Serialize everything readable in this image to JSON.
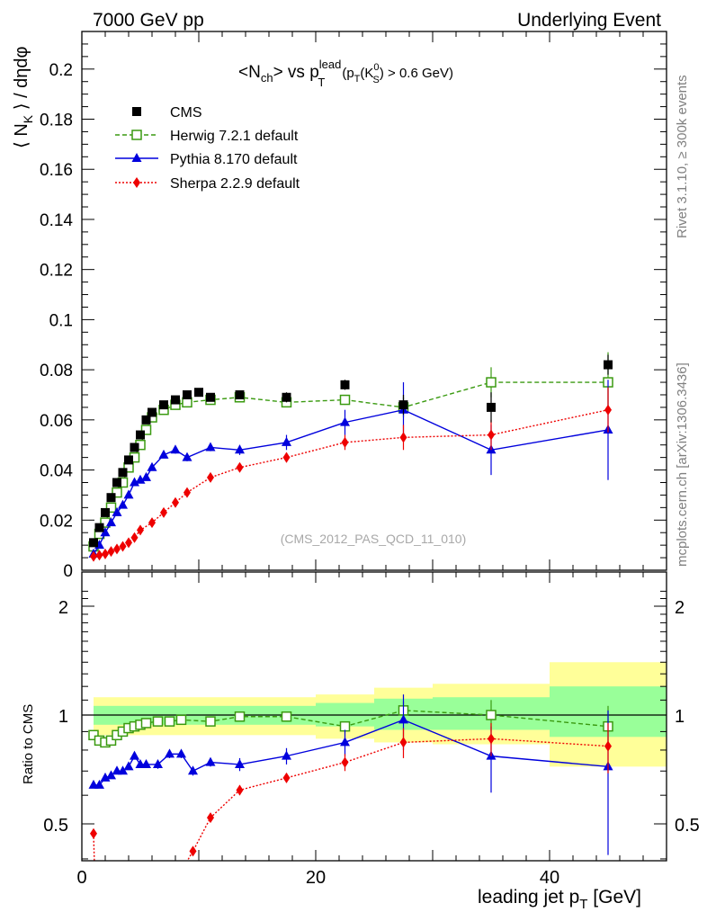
{
  "header": {
    "left": "7000 GeV pp",
    "right": "Underlying Event"
  },
  "side_labels": {
    "rivet": "Rivet 3.1.10, ≥ 300k events",
    "mcplots": "mcplots.cern.ch [arXiv:1306.3436]"
  },
  "chart_data": [
    {
      "type": "scatter",
      "title": {
        "main": "<N",
        "main_sub": "ch",
        "vs": "> vs p",
        "p_sup": "lead",
        "p_sub": "T",
        "cut_open": "(p",
        "cut_sub1": "T",
        "cut_paren": "(K",
        "k_sup": "0",
        "k_sub": "S",
        "cut_close": ") > 0.6 GeV)"
      },
      "ylabel": {
        "open": "⟨ N",
        "sub": "K",
        "close": " ⟩ / dηdφ"
      },
      "watermark": "(CMS_2012_PAS_QCD_11_010)",
      "xlim": [
        0,
        50
      ],
      "ylim": [
        0,
        0.215
      ],
      "ytick_labels": [
        "0",
        "0.02",
        "0.04",
        "0.06",
        "0.08",
        "0.1",
        "0.12",
        "0.14",
        "0.16",
        "0.18",
        "0.2"
      ],
      "legend_position": "top-left",
      "series": [
        {
          "name": "CMS",
          "color": "#000000",
          "marker": "filled-square",
          "x": [
            1.0,
            1.5,
            2.0,
            2.5,
            3.0,
            3.5,
            4.0,
            4.5,
            5.0,
            5.5,
            6.0,
            7.0,
            8.0,
            9.0,
            10.0,
            11.0,
            13.5,
            17.5,
            22.5,
            27.5,
            35.0,
            45.0
          ],
          "y": [
            0.011,
            0.017,
            0.023,
            0.029,
            0.035,
            0.039,
            0.044,
            0.049,
            0.054,
            0.06,
            0.063,
            0.066,
            0.068,
            0.07,
            0.071,
            0.069,
            0.07,
            0.069,
            0.074,
            0.066,
            0.065,
            0.082
          ],
          "yerr": [
            0.001,
            0.001,
            0.001,
            0.001,
            0.001,
            0.001,
            0.001,
            0.001,
            0.001,
            0.001,
            0.001,
            0.001,
            0.001,
            0.001,
            0.001,
            0.001,
            0.001,
            0.002,
            0.002,
            0.004,
            0.006,
            0.004
          ]
        },
        {
          "name": "Herwig 7.2.1 default",
          "color": "#3a9a10",
          "marker": "open-square",
          "line": "dashed",
          "x": [
            1.0,
            1.5,
            2.0,
            2.5,
            3.0,
            3.5,
            4.0,
            4.5,
            5.0,
            5.5,
            6.0,
            7.0,
            8.0,
            9.0,
            11.0,
            13.5,
            17.5,
            22.5,
            27.5,
            35.0,
            45.0
          ],
          "y": [
            0.0095,
            0.0145,
            0.019,
            0.025,
            0.031,
            0.035,
            0.041,
            0.045,
            0.05,
            0.056,
            0.061,
            0.064,
            0.066,
            0.067,
            0.068,
            0.069,
            0.067,
            0.068,
            0.065,
            0.075,
            0.075
          ],
          "yerr": [
            0.0005,
            0.0005,
            0.0005,
            0.0005,
            0.0005,
            0.0005,
            0.0005,
            0.0005,
            0.0005,
            0.0005,
            0.0005,
            0.0005,
            0.0005,
            0.0005,
            0.001,
            0.001,
            0.001,
            0.002,
            0.004,
            0.006,
            0.012
          ]
        },
        {
          "name": "Pythia 8.170 default",
          "color": "#0000dd",
          "marker": "filled-triangle",
          "line": "solid",
          "x": [
            1.0,
            1.5,
            2.0,
            2.5,
            3.0,
            3.5,
            4.0,
            4.5,
            5.0,
            5.5,
            6.0,
            7.0,
            8.0,
            9.0,
            11.0,
            13.5,
            17.5,
            22.5,
            27.5,
            35.0,
            45.0
          ],
          "y": [
            0.0065,
            0.01,
            0.015,
            0.019,
            0.023,
            0.026,
            0.03,
            0.035,
            0.036,
            0.037,
            0.041,
            0.046,
            0.048,
            0.045,
            0.049,
            0.048,
            0.051,
            0.059,
            0.064,
            0.048,
            0.056
          ],
          "yerr": [
            0.0005,
            0.0005,
            0.0005,
            0.0005,
            0.0005,
            0.0005,
            0.0008,
            0.0008,
            0.001,
            0.001,
            0.001,
            0.001,
            0.0015,
            0.0015,
            0.0015,
            0.002,
            0.003,
            0.005,
            0.011,
            0.01,
            0.02
          ]
        },
        {
          "name": "Sherpa 2.2.9 default",
          "color": "#ee0000",
          "marker": "filled-diamond",
          "line": "dotted",
          "x": [
            1.0,
            1.5,
            2.0,
            2.5,
            3.0,
            3.5,
            4.0,
            4.5,
            5.0,
            6.0,
            7.0,
            8.0,
            9.0,
            11.0,
            13.5,
            17.5,
            22.5,
            27.5,
            35.0,
            45.0
          ],
          "y": [
            0.0055,
            0.006,
            0.0065,
            0.0075,
            0.0085,
            0.0095,
            0.011,
            0.013,
            0.016,
            0.019,
            0.023,
            0.027,
            0.031,
            0.037,
            0.041,
            0.045,
            0.051,
            0.053,
            0.054,
            0.064
          ],
          "yerr": [
            0.0003,
            0.0003,
            0.0003,
            0.0003,
            0.0003,
            0.0003,
            0.0004,
            0.0005,
            0.0005,
            0.0006,
            0.0007,
            0.0008,
            0.001,
            0.001,
            0.0015,
            0.002,
            0.003,
            0.005,
            0.006,
            0.009
          ]
        }
      ]
    },
    {
      "type": "scatter",
      "ylabel": "Ratio to CMS",
      "xlabel": {
        "main": "leading jet p",
        "sub": "T",
        "unit": " [GeV]"
      },
      "xlim": [
        0,
        50
      ],
      "ylim": [
        0.33,
        2.3
      ],
      "xtick_labels": [
        "0",
        "20",
        "40"
      ],
      "xtick_values": [
        0,
        20,
        40
      ],
      "ytick_labels": [
        "0.5",
        "1",
        "2"
      ],
      "ytick_values": [
        0.5,
        1,
        2
      ],
      "bands": [
        {
          "x0": 1.0,
          "x1": 5.0,
          "yellow": [
            0.88,
            1.12
          ],
          "green": [
            0.94,
            1.06
          ]
        },
        {
          "x0": 5.0,
          "x1": 10.0,
          "yellow": [
            0.88,
            1.12
          ],
          "green": [
            0.94,
            1.06
          ]
        },
        {
          "x0": 10.0,
          "x1": 15.0,
          "yellow": [
            0.88,
            1.12
          ],
          "green": [
            0.94,
            1.06
          ]
        },
        {
          "x0": 15.0,
          "x1": 20.0,
          "yellow": [
            0.88,
            1.12
          ],
          "green": [
            0.94,
            1.06
          ]
        },
        {
          "x0": 20.0,
          "x1": 25.0,
          "yellow": [
            0.86,
            1.14
          ],
          "green": [
            0.93,
            1.08
          ]
        },
        {
          "x0": 25.0,
          "x1": 30.0,
          "yellow": [
            0.84,
            1.19
          ],
          "green": [
            0.91,
            1.11
          ]
        },
        {
          "x0": 30.0,
          "x1": 40.0,
          "yellow": [
            0.83,
            1.22
          ],
          "green": [
            0.91,
            1.12
          ]
        },
        {
          "x0": 40.0,
          "x1": 50.0,
          "yellow": [
            0.72,
            1.4
          ],
          "green": [
            0.87,
            1.2
          ]
        }
      ],
      "series": [
        {
          "name": "Herwig 7.2.1 default",
          "color": "#3a9a10",
          "marker": "open-square",
          "line": "dashed",
          "x": [
            1.0,
            1.5,
            2.0,
            2.5,
            3.0,
            3.5,
            4.0,
            4.5,
            5.0,
            5.5,
            6.5,
            7.5,
            8.5,
            11.0,
            13.5,
            17.5,
            22.5,
            27.5,
            35.0,
            45.0
          ],
          "y": [
            0.88,
            0.85,
            0.84,
            0.85,
            0.88,
            0.9,
            0.92,
            0.93,
            0.94,
            0.95,
            0.96,
            0.96,
            0.97,
            0.96,
            0.99,
            0.99,
            0.93,
            1.03,
            1.0,
            0.93
          ],
          "yerr": [
            0.01,
            0.01,
            0.01,
            0.01,
            0.01,
            0.01,
            0.01,
            0.01,
            0.01,
            0.01,
            0.01,
            0.01,
            0.01,
            0.01,
            0.02,
            0.02,
            0.03,
            0.06,
            0.1,
            0.13
          ]
        },
        {
          "name": "Pythia 8.170 default",
          "color": "#0000dd",
          "marker": "filled-triangle",
          "line": "solid",
          "x": [
            1.0,
            1.5,
            2.0,
            2.5,
            3.0,
            3.5,
            4.0,
            4.5,
            5.0,
            5.5,
            6.5,
            7.5,
            8.5,
            9.5,
            11.0,
            13.5,
            17.5,
            22.5,
            27.5,
            35.0,
            45.0
          ],
          "y": [
            0.64,
            0.64,
            0.67,
            0.68,
            0.7,
            0.7,
            0.72,
            0.77,
            0.73,
            0.73,
            0.73,
            0.78,
            0.78,
            0.7,
            0.74,
            0.73,
            0.77,
            0.84,
            0.97,
            0.77,
            0.72
          ],
          "yerr": [
            0.01,
            0.01,
            0.01,
            0.01,
            0.01,
            0.01,
            0.015,
            0.015,
            0.015,
            0.015,
            0.02,
            0.02,
            0.02,
            0.02,
            0.02,
            0.03,
            0.04,
            0.07,
            0.17,
            0.16,
            0.31
          ]
        },
        {
          "name": "Sherpa 2.2.9 default",
          "color": "#ee0000",
          "marker": "filled-diamond",
          "line": "dotted",
          "x": [
            1.0,
            8.5,
            9.5,
            11.0,
            13.5,
            17.5,
            22.5,
            27.5,
            35.0,
            45.0
          ],
          "y": [
            0.47,
            0.37,
            0.42,
            0.52,
            0.62,
            0.67,
            0.74,
            0.84,
            0.86,
            0.82
          ],
          "yerr": [
            0.01,
            0.01,
            0.01,
            0.01,
            0.02,
            0.02,
            0.04,
            0.08,
            0.09,
            0.13
          ],
          "extends_below_from_x": 1.0
        }
      ]
    }
  ]
}
